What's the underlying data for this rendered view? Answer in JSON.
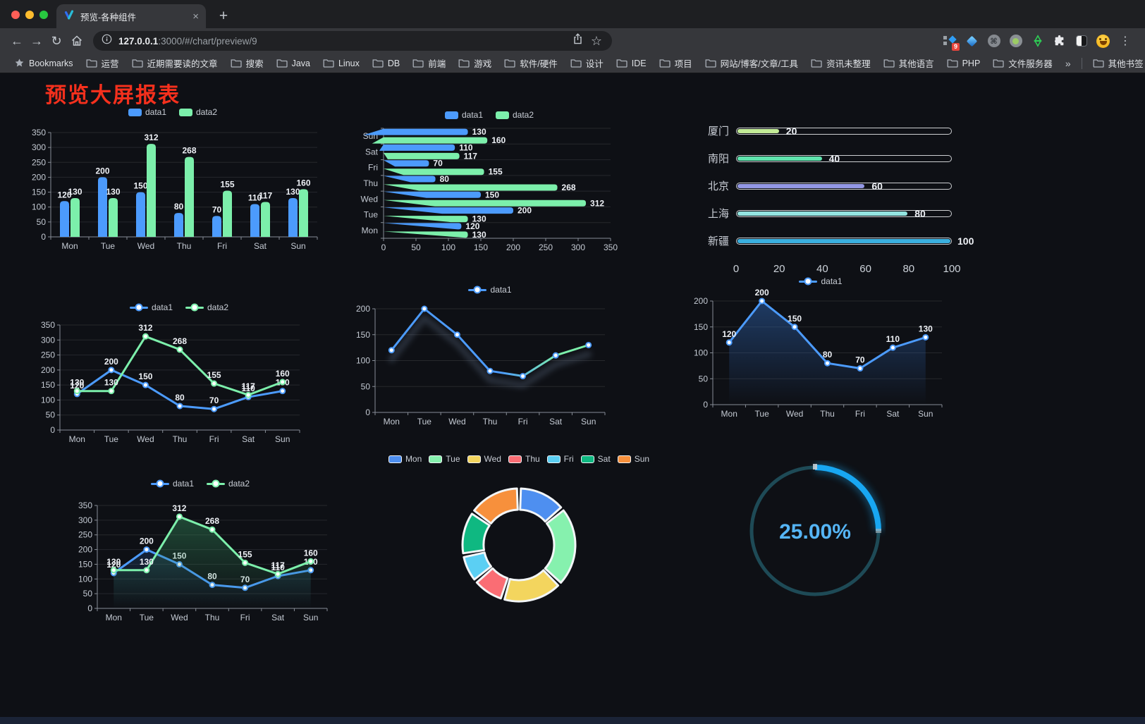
{
  "browser": {
    "tab": {
      "title": "预览-各种组件"
    },
    "url": {
      "host": "127.0.0.1",
      "rest": ":3000/#/chart/preview/9"
    },
    "icons": {
      "back": "←",
      "forward": "→",
      "reload": "↻",
      "star": "☆",
      "close": "×",
      "new_tab": "+",
      "overflow": "»",
      "menu": "⋮"
    },
    "extension_badge": "9",
    "bookmarks_label": "Bookmarks",
    "bookmarks": [
      "运营",
      "近期需要读的文章",
      "搜索",
      "Java",
      "Linux",
      "DB",
      "前端",
      "游戏",
      "软件/硬件",
      "设计",
      "IDE",
      "项目",
      "网站/博客/文章/工具",
      "资讯未整理",
      "其他语言",
      "PHP",
      "文件服务器"
    ],
    "other_bookmarks_label": "其他书签"
  },
  "page": {
    "title": "预览大屏报表",
    "title_color": "#f5301d"
  },
  "chart_data": [
    {
      "id": "bar-vertical",
      "type": "bar",
      "categories": [
        "Mon",
        "Tue",
        "Wed",
        "Thu",
        "Fri",
        "Sat",
        "Sun"
      ],
      "series": [
        {
          "name": "data1",
          "color": "#4C9BFD",
          "values": [
            120,
            200,
            150,
            80,
            70,
            110,
            130
          ]
        },
        {
          "name": "data2",
          "color": "#7CEFAB",
          "values": [
            130,
            130,
            312,
            268,
            155,
            117,
            160
          ]
        }
      ],
      "ylim": [
        0,
        350
      ],
      "ystep": 50,
      "legend": true,
      "grid": true
    },
    {
      "id": "bar-horizontal",
      "type": "hbar",
      "categories_top_to_bottom": [
        "Sun",
        "Sat",
        "Fri",
        "Thu",
        "Wed",
        "Tue",
        "Mon"
      ],
      "series": [
        {
          "name": "data1",
          "color": "#4C9BFD",
          "values": [
            130,
            110,
            70,
            80,
            150,
            200,
            120
          ]
        },
        {
          "name": "data2",
          "color": "#7CEFAB",
          "values": [
            160,
            117,
            155,
            268,
            312,
            130,
            130
          ]
        }
      ],
      "xlim": [
        0,
        350
      ],
      "xstep": 50,
      "legend": true
    },
    {
      "id": "progress-list",
      "type": "progress",
      "max": 100,
      "rows": [
        {
          "label": "厦门",
          "value": 20,
          "color": "#C3EC97"
        },
        {
          "label": "南阳",
          "value": 40,
          "color": "#5FE3AD"
        },
        {
          "label": "北京",
          "value": 60,
          "color": "#9398E5"
        },
        {
          "label": "上海",
          "value": 80,
          "color": "#93E4E0"
        },
        {
          "label": "新疆",
          "value": 100,
          "color": "#3AB0E0"
        }
      ],
      "axis_ticks": [
        0,
        20,
        40,
        60,
        80,
        100
      ]
    },
    {
      "id": "line-dual",
      "type": "line",
      "categories": [
        "Mon",
        "Tue",
        "Wed",
        "Thu",
        "Fri",
        "Sat",
        "Sun"
      ],
      "series": [
        {
          "name": "data1",
          "color": "#4C9BFD",
          "values": [
            120,
            200,
            150,
            80,
            70,
            110,
            130
          ],
          "labels": true
        },
        {
          "name": "data2",
          "color": "#7CEFAB",
          "values": [
            130,
            130,
            312,
            268,
            155,
            117,
            160
          ],
          "labels": true
        }
      ],
      "ylim": [
        0,
        350
      ],
      "ystep": 50,
      "legend": true
    },
    {
      "id": "line-gradient",
      "type": "line",
      "categories": [
        "Mon",
        "Tue",
        "Wed",
        "Thu",
        "Fri",
        "Sat",
        "Sun"
      ],
      "series": [
        {
          "name": "data1",
          "color": "#4C9BFD",
          "gradient": [
            "#4C9BFD",
            "#7CEFAB"
          ],
          "values": [
            120,
            200,
            150,
            80,
            70,
            110,
            130
          ],
          "labels": false
        }
      ],
      "ylim": [
        0,
        200
      ],
      "ystep": 50,
      "legend": true,
      "shadow": true
    },
    {
      "id": "line-area",
      "type": "line",
      "categories": [
        "Mon",
        "Tue",
        "Wed",
        "Thu",
        "Fri",
        "Sat",
        "Sun"
      ],
      "series": [
        {
          "name": "data1",
          "color": "#4C9BFD",
          "area": "rgba(44,94,165,0.55)",
          "values": [
            120,
            200,
            150,
            80,
            70,
            110,
            130
          ],
          "labels": true
        }
      ],
      "ylim": [
        0,
        200
      ],
      "ystep": 50,
      "legend": true
    },
    {
      "id": "area-dual",
      "type": "line",
      "categories": [
        "Mon",
        "Tue",
        "Wed",
        "Thu",
        "Fri",
        "Sat",
        "Sun"
      ],
      "series": [
        {
          "name": "data1",
          "color": "#4C9BFD",
          "area": "rgba(44,94,165,0.45)",
          "values": [
            120,
            200,
            150,
            80,
            70,
            110,
            130
          ],
          "labels": true
        },
        {
          "name": "data2",
          "color": "#7CEFAB",
          "area": "rgba(52,140,92,0.5)",
          "values": [
            130,
            130,
            312,
            268,
            155,
            117,
            160
          ],
          "labels": true
        }
      ],
      "ylim": [
        0,
        350
      ],
      "ystep": 50,
      "legend": true
    },
    {
      "id": "donut",
      "type": "pie",
      "categories": [
        "Mon",
        "Tue",
        "Wed",
        "Thu",
        "Fri",
        "Sat",
        "Sun"
      ],
      "values": [
        120,
        200,
        150,
        80,
        70,
        110,
        130
      ],
      "colors": [
        "#4E8FF0",
        "#86F1AE",
        "#F3D55E",
        "#FA6D74",
        "#5BCFF3",
        "#0FB881",
        "#F7903C"
      ],
      "legend": true
    },
    {
      "id": "gauge",
      "type": "gauge",
      "value_percent": 25,
      "display": "25.00%",
      "arc_color": "#18A7F2",
      "track_color": "#1E4A56",
      "text_color": "#55B5F6"
    }
  ]
}
